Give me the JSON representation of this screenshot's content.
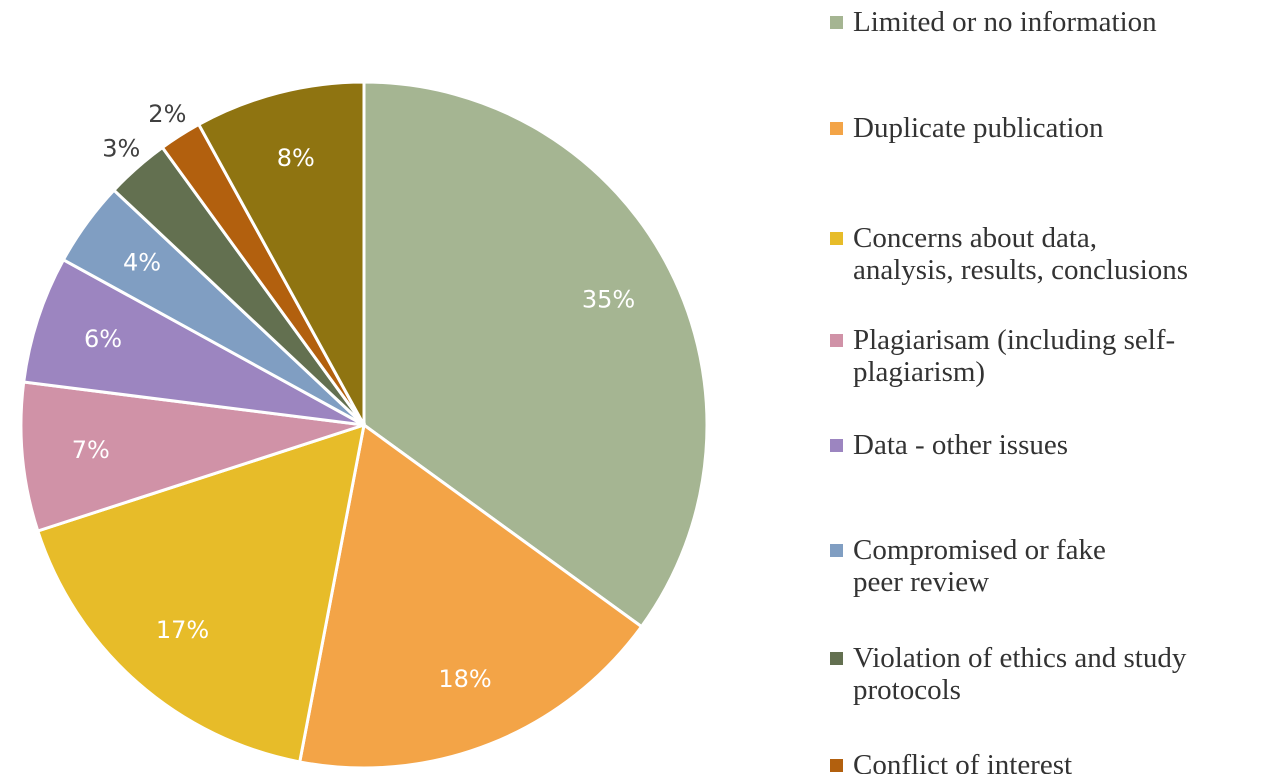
{
  "chart_data": {
    "type": "pie",
    "categories": [
      "Limited or no information",
      "Duplicate publication",
      "Concerns about data, analysis, results, conclusions",
      "Plagiarisam (including self-plagiarism)",
      "Data - other issues",
      "Compromised or fake peer review",
      "Violation of ethics and study protocols",
      "Conflict of interest",
      null
    ],
    "values": [
      35,
      18,
      17,
      7,
      6,
      4,
      3,
      2,
      8
    ],
    "value_labels": [
      "35%",
      "18%",
      "17%",
      "7%",
      "6%",
      "4%",
      "3%",
      "2%",
      "8%"
    ],
    "colors": [
      "#a5b592",
      "#f3a447",
      "#e7bc29",
      "#d092a7",
      "#9c85c0",
      "#809ec2",
      "#637050",
      "#b2600e",
      "#8f7411"
    ],
    "legend": "right"
  }
}
